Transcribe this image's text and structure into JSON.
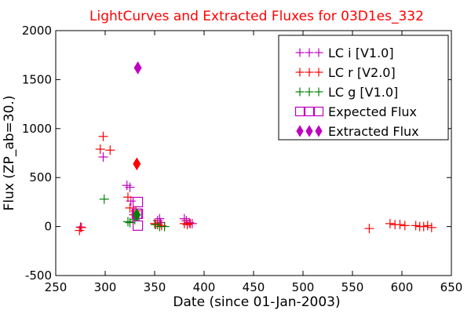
{
  "chart_data": {
    "type": "scatter",
    "title": "LightCurves and Extracted Fluxes for 03D1es_332",
    "xlabel": "Date (since 01-Jan-2003)",
    "ylabel": "Flux (ZP_ab=30.)",
    "xlim": [
      250,
      650
    ],
    "ylim": [
      -500,
      2000
    ],
    "xticks": [
      "250",
      "300",
      "350",
      "400",
      "450",
      "500",
      "550",
      "600",
      "650"
    ],
    "yticks": [
      "-500",
      "0",
      "500",
      "1000",
      "1500",
      "2000"
    ],
    "grid": false,
    "legend_position": "top-right",
    "series": [
      {
        "name": "LC i [V1.0]",
        "marker": "plus",
        "color": "#bf00bf",
        "points": [
          [
            275,
            -5
          ],
          [
            298,
            710
          ],
          [
            322,
            420
          ],
          [
            325,
            400
          ],
          [
            326,
            260
          ],
          [
            353,
            60
          ],
          [
            355,
            80
          ],
          [
            356,
            40
          ],
          [
            380,
            80
          ],
          [
            382,
            60
          ],
          [
            385,
            40
          ],
          [
            388,
            30
          ]
        ]
      },
      {
        "name": "LC r [V2.0]",
        "marker": "plus",
        "color": "#ff0000",
        "points": [
          [
            274,
            -40
          ],
          [
            276,
            -10
          ],
          [
            295,
            790
          ],
          [
            298,
            920
          ],
          [
            305,
            780
          ],
          [
            323,
            300
          ],
          [
            325,
            190
          ],
          [
            329,
            120
          ],
          [
            331,
            160
          ],
          [
            350,
            30
          ],
          [
            353,
            20
          ],
          [
            357,
            10
          ],
          [
            380,
            30
          ],
          [
            383,
            20
          ],
          [
            386,
            30
          ],
          [
            567,
            -20
          ],
          [
            588,
            30
          ],
          [
            593,
            20
          ],
          [
            598,
            20
          ],
          [
            603,
            10
          ],
          [
            614,
            10
          ],
          [
            618,
            0
          ],
          [
            622,
            0
          ],
          [
            626,
            10
          ],
          [
            630,
            -10
          ]
        ]
      },
      {
        "name": "LC g [V1.0]",
        "marker": "plus",
        "color": "#008000",
        "points": [
          [
            299,
            280
          ],
          [
            323,
            50
          ],
          [
            325,
            40
          ],
          [
            330,
            70
          ],
          [
            351,
            20
          ],
          [
            355,
            0
          ],
          [
            360,
            0
          ]
        ]
      },
      {
        "name": "Expected Flux",
        "marker": "square",
        "color": "#bf00bf",
        "points": [
          [
            333,
            250
          ],
          [
            333,
            130
          ],
          [
            333,
            10
          ],
          [
            332,
            130
          ]
        ]
      },
      {
        "name": "Extracted Flux",
        "marker": "diamond",
        "color": "#bf00bf",
        "points": [
          [
            333,
            1620
          ],
          [
            332,
            640
          ],
          [
            332,
            120
          ]
        ],
        "point_colors": [
          "#bf00bf",
          "#ff0000",
          "#008000"
        ]
      }
    ]
  }
}
